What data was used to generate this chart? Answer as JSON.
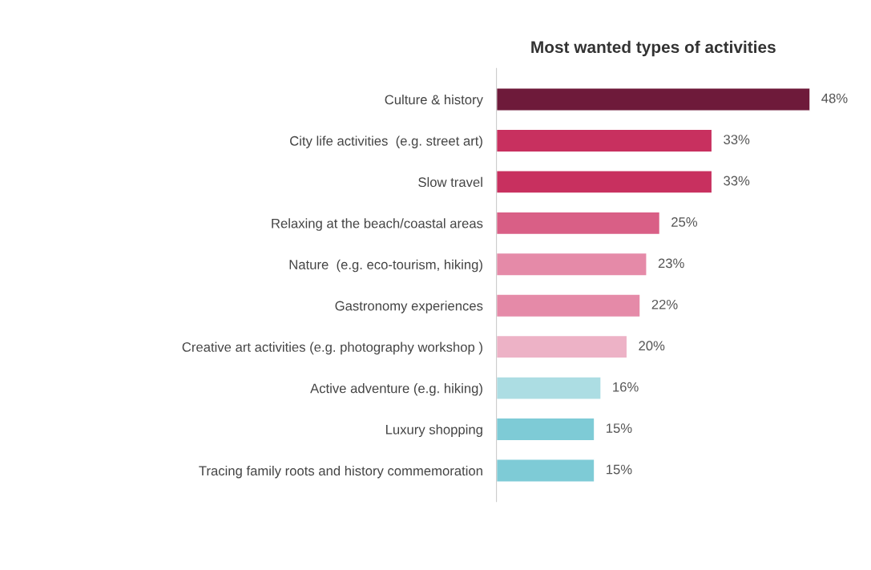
{
  "chart_data": {
    "type": "bar",
    "orientation": "horizontal",
    "title": "Most wanted types of activities",
    "categories": [
      "Culture & history",
      "City life activities  (e.g. street art)",
      "Slow travel",
      "Relaxing at the beach/coastal areas",
      "Nature  (e.g. eco-tourism, hiking)",
      "Gastronomy experiences",
      "Creative art activities (e.g. photography workshop )",
      "Active adventure (e.g. hiking)",
      "Luxury shopping",
      "Tracing family roots and history commemoration"
    ],
    "values": [
      48,
      33,
      33,
      25,
      23,
      22,
      20,
      16,
      15,
      15
    ],
    "colors": [
      "#6e1a3a",
      "#c8305f",
      "#c8305f",
      "#d95f86",
      "#e58aa8",
      "#e58aa8",
      "#edb2c6",
      "#acdde3",
      "#7ecbd6",
      "#7ecbd6"
    ],
    "value_labels": [
      "48%",
      "33%",
      "33%",
      "25%",
      "23%",
      "22%",
      "20%",
      "16%",
      "15%",
      "15%"
    ],
    "tick_labels": "y",
    "grid": false,
    "legend": false
  }
}
